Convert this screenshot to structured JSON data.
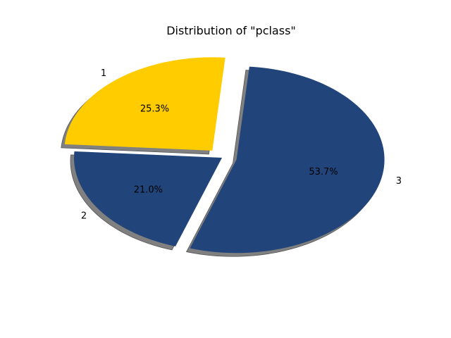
{
  "chart_data": {
    "type": "pie",
    "title": "Distribution of \"pclass\"",
    "categories": [
      "1",
      "2",
      "3"
    ],
    "values": [
      25.3,
      21.0,
      53.7
    ],
    "percent_labels": [
      "25.3%",
      "21.0%",
      "53.7%"
    ],
    "colors": [
      "#ffcc00",
      "#21457a",
      "#21457a"
    ],
    "explode": [
      0.1,
      0,
      0.1
    ],
    "shadow": true,
    "shadow_color": "#808080",
    "legend": false
  }
}
